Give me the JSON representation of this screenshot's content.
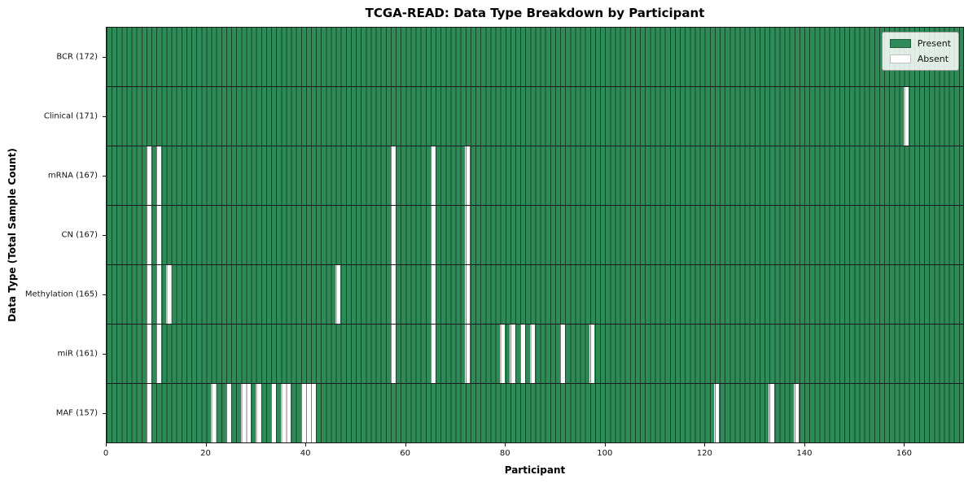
{
  "chart_data": {
    "type": "heatmap",
    "title": "TCGA-READ: Data Type Breakdown by Participant",
    "xlabel": "Participant",
    "ylabel": "Data Type (Total Sample Count)",
    "x_ticks": [
      0,
      20,
      40,
      60,
      80,
      100,
      120,
      140,
      160
    ],
    "x_range": [
      0,
      172
    ],
    "n_participants": 172,
    "grid": "vertical-column-lines",
    "legend": {
      "position": "upper right",
      "entries": [
        {
          "label": "Present",
          "color": "#2e8b57"
        },
        {
          "label": "Absent",
          "color": "#ffffff"
        }
      ]
    },
    "rows": [
      {
        "label": "BCR (172)",
        "data_type": "BCR",
        "total_samples": 172,
        "absent_participants": []
      },
      {
        "label": "Clinical (171)",
        "data_type": "Clinical",
        "total_samples": 171,
        "absent_participants": [
          160
        ]
      },
      {
        "label": "mRNA (167)",
        "data_type": "mRNA",
        "total_samples": 167,
        "absent_participants": [
          8,
          10,
          57,
          65,
          72
        ]
      },
      {
        "label": "CN (167)",
        "data_type": "CN",
        "total_samples": 167,
        "absent_participants": [
          8,
          10,
          57,
          65,
          72
        ]
      },
      {
        "label": "Methylation (165)",
        "data_type": "Methylation",
        "total_samples": 165,
        "absent_participants": [
          8,
          10,
          12,
          46,
          57,
          65,
          72
        ]
      },
      {
        "label": "miR (161)",
        "data_type": "miR",
        "total_samples": 161,
        "absent_participants": [
          8,
          10,
          57,
          65,
          72,
          79,
          81,
          83,
          85,
          91,
          97
        ]
      },
      {
        "label": "MAF (157)",
        "data_type": "MAF",
        "total_samples": 157,
        "absent_participants": [
          8,
          21,
          24,
          27,
          28,
          30,
          33,
          35,
          36,
          39,
          40,
          41,
          122,
          133,
          138
        ]
      }
    ],
    "colors": {
      "present": "#2e8b57",
      "absent": "#ffffff",
      "column_grid_line": "rgba(0,0,0,0.5)",
      "row_separator": "#1a1a1a",
      "plot_border": "#1a1a1a"
    }
  }
}
